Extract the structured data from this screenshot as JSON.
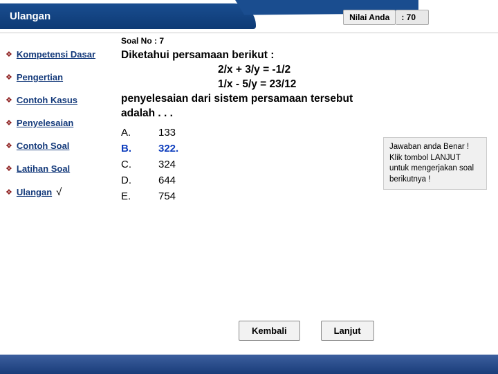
{
  "header": {
    "title": "Ulangan",
    "score_label": "Nilai Anda",
    "score_value": ": 70"
  },
  "sidebar": {
    "items": [
      {
        "label": "Kompetensi Dasar",
        "checked": false
      },
      {
        "label": "Pengertian",
        "checked": false
      },
      {
        "label": "Contoh Kasus",
        "checked": false
      },
      {
        "label": "Penyelesaian",
        "checked": false
      },
      {
        "label": "Contoh Soal",
        "checked": false
      },
      {
        "label": "Latihan Soal",
        "checked": false
      },
      {
        "label": "Ulangan",
        "checked": true
      }
    ]
  },
  "question": {
    "number_label": "Soal No : 7",
    "line1": "Diketahui persamaan berikut :",
    "line2": "2/x + 3/y = -1/2",
    "line3": "1/x - 5/y  = 23/12",
    "line4": "penyelesaian dari sistem persamaan tersebut",
    "line5": "adalah . . ."
  },
  "options": [
    {
      "letter": "A.",
      "value": "133",
      "selected": false
    },
    {
      "letter": "B.",
      "value": "322.",
      "selected": true
    },
    {
      "letter": "C.",
      "value": "324",
      "selected": false
    },
    {
      "letter": "D.",
      "value": "644",
      "selected": false
    },
    {
      "letter": "E.",
      "value": "754",
      "selected": false
    }
  ],
  "feedback": {
    "text": "Jawaban anda Benar ! Klik tombol LANJUT untuk mengerjakan soal berikutnya !"
  },
  "buttons": {
    "back": "Kembali",
    "next": "Lanjut"
  },
  "colors": {
    "primary_dark": "#0d3a75",
    "primary_light": "#1a4d8f",
    "nav_link": "#13397a",
    "nav_bullet": "#8b1a1a",
    "selected": "#0d3dbd",
    "feedback_bg": "#f0f0f0"
  }
}
